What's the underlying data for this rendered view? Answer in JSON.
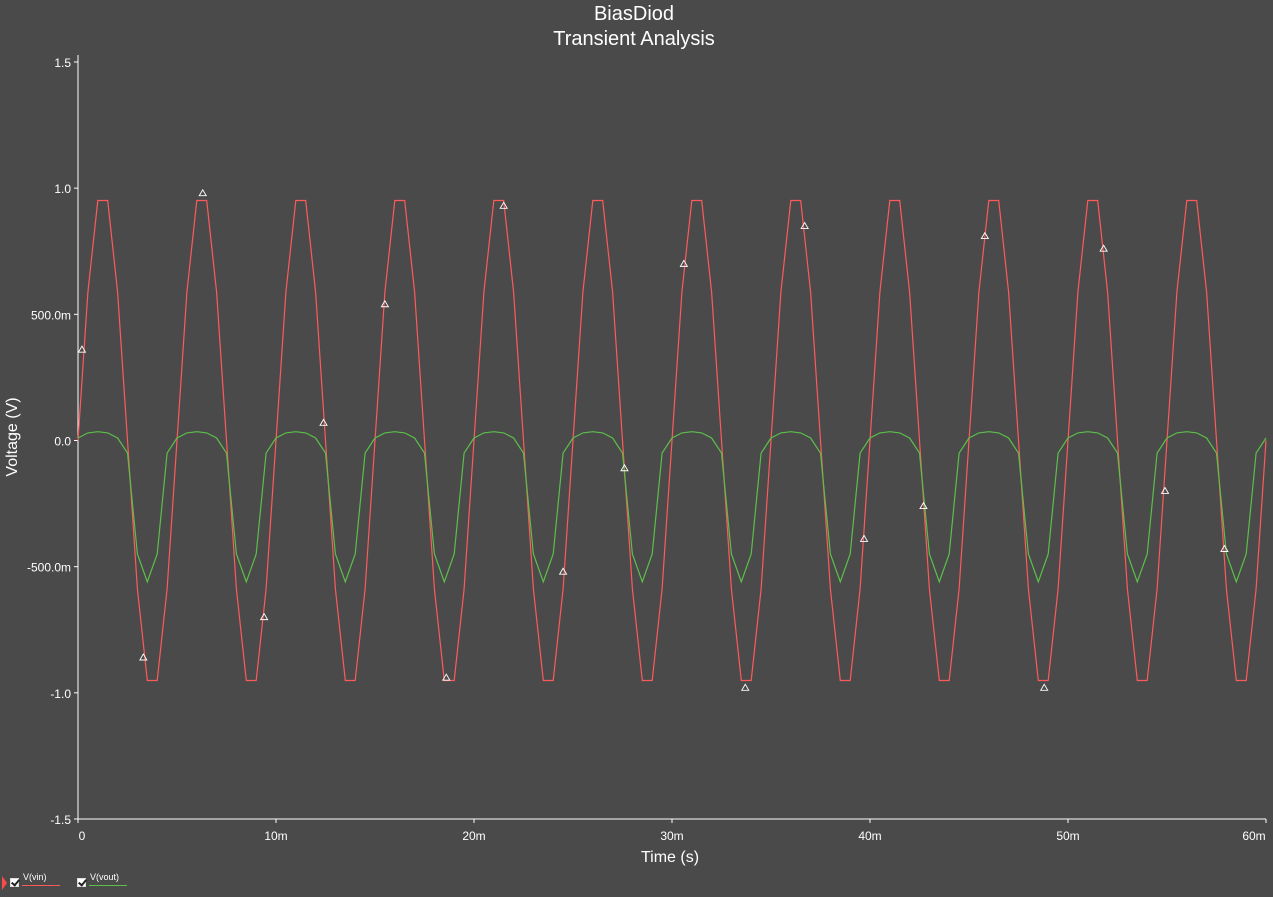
{
  "chart_data": {
    "type": "line",
    "title": "BiasDiod",
    "subtitle": "Transient Analysis",
    "xlabel": "Time (s)",
    "ylabel": "Voltage (V)",
    "xlim": [
      0,
      0.06
    ],
    "ylim": [
      -1.5,
      1.5
    ],
    "x_ticks": [
      0,
      0.01,
      0.02,
      0.03,
      0.04,
      0.05,
      0.06
    ],
    "x_tick_labels": [
      "0",
      "10m",
      "20m",
      "30m",
      "40m",
      "50m",
      "60m"
    ],
    "y_ticks": [
      1.5,
      1.0,
      0.5,
      0.0,
      -0.5,
      -1.0,
      -1.5
    ],
    "y_tick_labels": [
      "1.5",
      "1.0",
      "500.0m",
      "0.0",
      "-500.0m",
      "-1.0",
      "-1.5"
    ],
    "grid": false,
    "legend_position": "bottom-left",
    "series": [
      {
        "name": "V(vin)",
        "color": "#ff5a5a",
        "x": [
          0.0,
          0.0005,
          0.001,
          0.0015,
          0.002,
          0.0025,
          0.003,
          0.0035,
          0.004,
          0.0045,
          0.005,
          0.0055,
          0.006,
          0.0065,
          0.007,
          0.0075,
          0.008,
          0.0085,
          0.009,
          0.0095,
          0.01,
          0.0105,
          0.011,
          0.0115,
          0.012,
          0.0125,
          0.013,
          0.0135,
          0.014,
          0.0145,
          0.015,
          0.0155,
          0.016,
          0.0165,
          0.017,
          0.0175,
          0.018,
          0.0185,
          0.019,
          0.0195,
          0.02,
          0.0205,
          0.021,
          0.0215,
          0.022,
          0.0225,
          0.023,
          0.0235,
          0.024,
          0.0245,
          0.025,
          0.0255,
          0.026,
          0.0265,
          0.027,
          0.0275,
          0.028,
          0.0285,
          0.029,
          0.0295,
          0.03,
          0.0305,
          0.031,
          0.0315,
          0.032,
          0.0325,
          0.033,
          0.0335,
          0.034,
          0.0345,
          0.035,
          0.0355,
          0.036,
          0.0365,
          0.037,
          0.0375,
          0.038,
          0.0385,
          0.039,
          0.0395,
          0.04,
          0.0405,
          0.041,
          0.0415,
          0.042,
          0.0425,
          0.043,
          0.0435,
          0.044,
          0.0445,
          0.045,
          0.0455,
          0.046,
          0.0465,
          0.047,
          0.0475,
          0.048,
          0.0485,
          0.049,
          0.0495,
          0.05,
          0.0505,
          0.051,
          0.0515,
          0.052,
          0.0525,
          0.053,
          0.0535,
          0.054,
          0.0545,
          0.055,
          0.0555,
          0.056,
          0.0565,
          0.057,
          0.0575,
          0.058,
          0.0585,
          0.059,
          0.0595,
          0.06
        ],
        "values": [
          0.0,
          0.588,
          0.951,
          0.951,
          0.588,
          0.0,
          -0.588,
          -0.951,
          -0.951,
          -0.588,
          0.0,
          0.588,
          0.951,
          0.951,
          0.588,
          0.0,
          -0.588,
          -0.951,
          -0.951,
          -0.588,
          0.0,
          0.588,
          0.951,
          0.951,
          0.588,
          0.0,
          -0.588,
          -0.951,
          -0.951,
          -0.588,
          0.0,
          0.588,
          0.951,
          0.951,
          0.588,
          0.0,
          -0.588,
          -0.951,
          -0.951,
          -0.588,
          0.0,
          0.588,
          0.951,
          0.951,
          0.588,
          0.0,
          -0.588,
          -0.951,
          -0.951,
          -0.588,
          0.0,
          0.588,
          0.951,
          0.951,
          0.588,
          0.0,
          -0.588,
          -0.951,
          -0.951,
          -0.588,
          0.0,
          0.588,
          0.951,
          0.951,
          0.588,
          0.0,
          -0.588,
          -0.951,
          -0.951,
          -0.588,
          0.0,
          0.588,
          0.951,
          0.951,
          0.588,
          0.0,
          -0.588,
          -0.951,
          -0.951,
          -0.588,
          0.0,
          0.588,
          0.951,
          0.951,
          0.588,
          0.0,
          -0.588,
          -0.951,
          -0.951,
          -0.588,
          0.0,
          0.588,
          0.951,
          0.951,
          0.588,
          0.0,
          -0.588,
          -0.951,
          -0.951,
          -0.588,
          0.0,
          0.588,
          0.951,
          0.951,
          0.588,
          0.0,
          -0.588,
          -0.951,
          -0.951,
          -0.588,
          0.0,
          0.588,
          0.951,
          0.951,
          0.588,
          0.0,
          -0.588,
          -0.951,
          -0.951,
          -0.588,
          0.0
        ],
        "markers_x": [
          0.0002,
          0.0033,
          0.0063,
          0.0094,
          0.0124,
          0.0155,
          0.0186,
          0.0215,
          0.0245,
          0.0276,
          0.0306,
          0.0337,
          0.0367,
          0.0397,
          0.0427,
          0.0458,
          0.0488,
          0.0518,
          0.0549,
          0.0579
        ],
        "markers_y": [
          0.36,
          -0.86,
          0.98,
          -0.7,
          0.07,
          0.54,
          -0.94,
          0.93,
          -0.52,
          -0.11,
          0.7,
          -0.98,
          0.85,
          -0.39,
          -0.26,
          0.81,
          -0.98,
          0.76,
          -0.2,
          -0.43
        ]
      },
      {
        "name": "V(vout)",
        "color": "#5cbf4a",
        "x": [
          0.0,
          0.0005,
          0.001,
          0.0015,
          0.002,
          0.0025,
          0.003,
          0.0035,
          0.004,
          0.0045,
          0.005,
          0.0055,
          0.006,
          0.0065,
          0.007,
          0.0075,
          0.008,
          0.0085,
          0.009,
          0.0095,
          0.01,
          0.0105,
          0.011,
          0.0115,
          0.012,
          0.0125,
          0.013,
          0.0135,
          0.014,
          0.0145,
          0.015,
          0.0155,
          0.016,
          0.0165,
          0.017,
          0.0175,
          0.018,
          0.0185,
          0.019,
          0.0195,
          0.02,
          0.0205,
          0.021,
          0.0215,
          0.022,
          0.0225,
          0.023,
          0.0235,
          0.024,
          0.0245,
          0.025,
          0.0255,
          0.026,
          0.0265,
          0.027,
          0.0275,
          0.028,
          0.0285,
          0.029,
          0.0295,
          0.03,
          0.0305,
          0.031,
          0.0315,
          0.032,
          0.0325,
          0.033,
          0.0335,
          0.034,
          0.0345,
          0.035,
          0.0355,
          0.036,
          0.0365,
          0.037,
          0.0375,
          0.038,
          0.0385,
          0.039,
          0.0395,
          0.04,
          0.0405,
          0.041,
          0.0415,
          0.042,
          0.0425,
          0.043,
          0.0435,
          0.044,
          0.0445,
          0.045,
          0.0455,
          0.046,
          0.0465,
          0.047,
          0.0475,
          0.048,
          0.0485,
          0.049,
          0.0495,
          0.05,
          0.0505,
          0.051,
          0.0515,
          0.052,
          0.0525,
          0.053,
          0.0535,
          0.054,
          0.0545,
          0.055,
          0.0555,
          0.056,
          0.0565,
          0.057,
          0.0575,
          0.058,
          0.0585,
          0.059,
          0.0595,
          0.06
        ],
        "values": [
          0.01,
          0.03,
          0.035,
          0.03,
          0.01,
          -0.05,
          -0.45,
          -0.56,
          -0.45,
          -0.05,
          0.01,
          0.03,
          0.035,
          0.03,
          0.01,
          -0.05,
          -0.45,
          -0.56,
          -0.45,
          -0.05,
          0.01,
          0.03,
          0.035,
          0.03,
          0.01,
          -0.05,
          -0.45,
          -0.56,
          -0.45,
          -0.05,
          0.01,
          0.03,
          0.035,
          0.03,
          0.01,
          -0.05,
          -0.45,
          -0.56,
          -0.45,
          -0.05,
          0.01,
          0.03,
          0.035,
          0.03,
          0.01,
          -0.05,
          -0.45,
          -0.56,
          -0.45,
          -0.05,
          0.01,
          0.03,
          0.035,
          0.03,
          0.01,
          -0.05,
          -0.45,
          -0.56,
          -0.45,
          -0.05,
          0.01,
          0.03,
          0.035,
          0.03,
          0.01,
          -0.05,
          -0.45,
          -0.56,
          -0.45,
          -0.05,
          0.01,
          0.03,
          0.035,
          0.03,
          0.01,
          -0.05,
          -0.45,
          -0.56,
          -0.45,
          -0.05,
          0.01,
          0.03,
          0.035,
          0.03,
          0.01,
          -0.05,
          -0.45,
          -0.56,
          -0.45,
          -0.05,
          0.01,
          0.03,
          0.035,
          0.03,
          0.01,
          -0.05,
          -0.45,
          -0.56,
          -0.45,
          -0.05,
          0.01,
          0.03,
          0.035,
          0.03,
          0.01,
          -0.05,
          -0.45,
          -0.56,
          -0.45,
          -0.05,
          0.01,
          0.03,
          0.035,
          0.03,
          0.01,
          -0.05,
          -0.45,
          -0.56,
          -0.45,
          -0.05,
          0.01
        ]
      }
    ]
  },
  "legend": {
    "items": [
      {
        "label": "V(vin)",
        "color": "#ff5a5a",
        "checked": true,
        "selected": true
      },
      {
        "label": "V(vout)",
        "color": "#5cbf4a",
        "checked": true,
        "selected": false
      }
    ]
  }
}
